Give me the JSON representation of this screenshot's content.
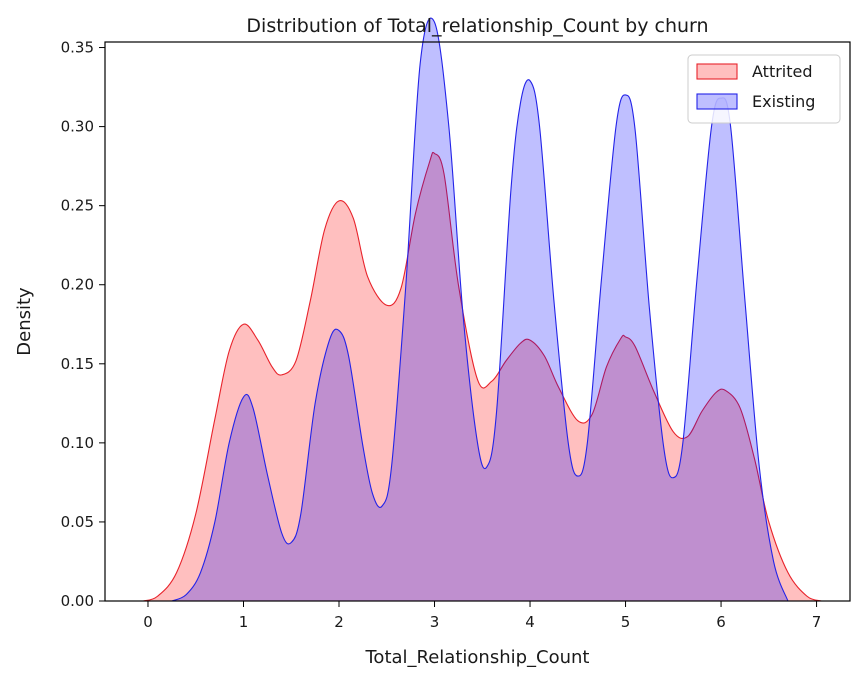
{
  "chart_data": {
    "type": "area",
    "title": "Distribution of Total_relationship_Count by churn",
    "xlabel": "Total_Relationship_Count",
    "ylabel": "Density",
    "xlim": [
      -0.45,
      7.35
    ],
    "ylim": [
      0,
      0.3535
    ],
    "xticks": [
      0,
      1,
      2,
      3,
      4,
      5,
      6,
      7
    ],
    "xtick_labels": [
      "0",
      "1",
      "2",
      "3",
      "4",
      "5",
      "6",
      "7"
    ],
    "yticks": [
      0,
      0.05,
      0.1,
      0.15,
      0.2,
      0.25,
      0.3,
      0.35
    ],
    "ytick_labels": [
      "0.00",
      "0.05",
      "0.10",
      "0.15",
      "0.20",
      "0.25",
      "0.30",
      "0.35"
    ],
    "grid": false,
    "legend_position": "top-right",
    "series": [
      {
        "name": "Attrited",
        "stroke": "#e8232b",
        "fill": "#ff0000",
        "fill_opacity": 0.25,
        "x": [
          -0.05,
          0.1,
          0.3,
          0.5,
          0.7,
          0.85,
          1.0,
          1.15,
          1.3,
          1.4,
          1.55,
          1.7,
          1.85,
          2.0,
          2.15,
          2.3,
          2.5,
          2.65,
          2.8,
          2.95,
          3.0,
          3.1,
          3.25,
          3.45,
          3.6,
          3.75,
          3.9,
          4.0,
          4.15,
          4.3,
          4.5,
          4.65,
          4.8,
          4.95,
          5.0,
          5.1,
          5.3,
          5.5,
          5.65,
          5.8,
          5.95,
          6.05,
          6.2,
          6.35,
          6.5,
          6.7,
          6.9,
          7.05
        ],
        "y": [
          0.0,
          0.003,
          0.018,
          0.055,
          0.115,
          0.158,
          0.175,
          0.165,
          0.148,
          0.143,
          0.152,
          0.19,
          0.235,
          0.253,
          0.242,
          0.205,
          0.187,
          0.198,
          0.245,
          0.278,
          0.283,
          0.27,
          0.2,
          0.14,
          0.139,
          0.152,
          0.163,
          0.165,
          0.155,
          0.135,
          0.114,
          0.118,
          0.148,
          0.166,
          0.167,
          0.161,
          0.132,
          0.107,
          0.104,
          0.12,
          0.132,
          0.133,
          0.122,
          0.09,
          0.05,
          0.018,
          0.003,
          0.0
        ]
      },
      {
        "name": "Existing",
        "stroke": "#2323e8",
        "fill": "#0000ff",
        "fill_opacity": 0.25,
        "x": [
          0.25,
          0.4,
          0.55,
          0.7,
          0.85,
          1.0,
          1.1,
          1.25,
          1.4,
          1.5,
          1.6,
          1.75,
          1.9,
          2.0,
          2.1,
          2.25,
          2.35,
          2.45,
          2.55,
          2.7,
          2.85,
          3.0,
          3.15,
          3.3,
          3.45,
          3.55,
          3.65,
          3.8,
          3.9,
          4.0,
          4.1,
          4.25,
          4.4,
          4.5,
          4.6,
          4.75,
          4.9,
          5.0,
          5.1,
          5.25,
          5.4,
          5.5,
          5.6,
          5.75,
          5.9,
          6.0,
          6.1,
          6.25,
          6.4,
          6.55,
          6.7
        ],
        "y": [
          0.0,
          0.004,
          0.018,
          0.05,
          0.1,
          0.129,
          0.122,
          0.08,
          0.043,
          0.037,
          0.055,
          0.125,
          0.165,
          0.171,
          0.155,
          0.098,
          0.068,
          0.06,
          0.085,
          0.2,
          0.34,
          0.366,
          0.3,
          0.18,
          0.1,
          0.085,
          0.12,
          0.26,
          0.315,
          0.329,
          0.3,
          0.19,
          0.1,
          0.079,
          0.1,
          0.205,
          0.3,
          0.32,
          0.298,
          0.185,
          0.097,
          0.078,
          0.1,
          0.205,
          0.3,
          0.318,
          0.3,
          0.19,
          0.085,
          0.025,
          0.0
        ]
      }
    ]
  }
}
